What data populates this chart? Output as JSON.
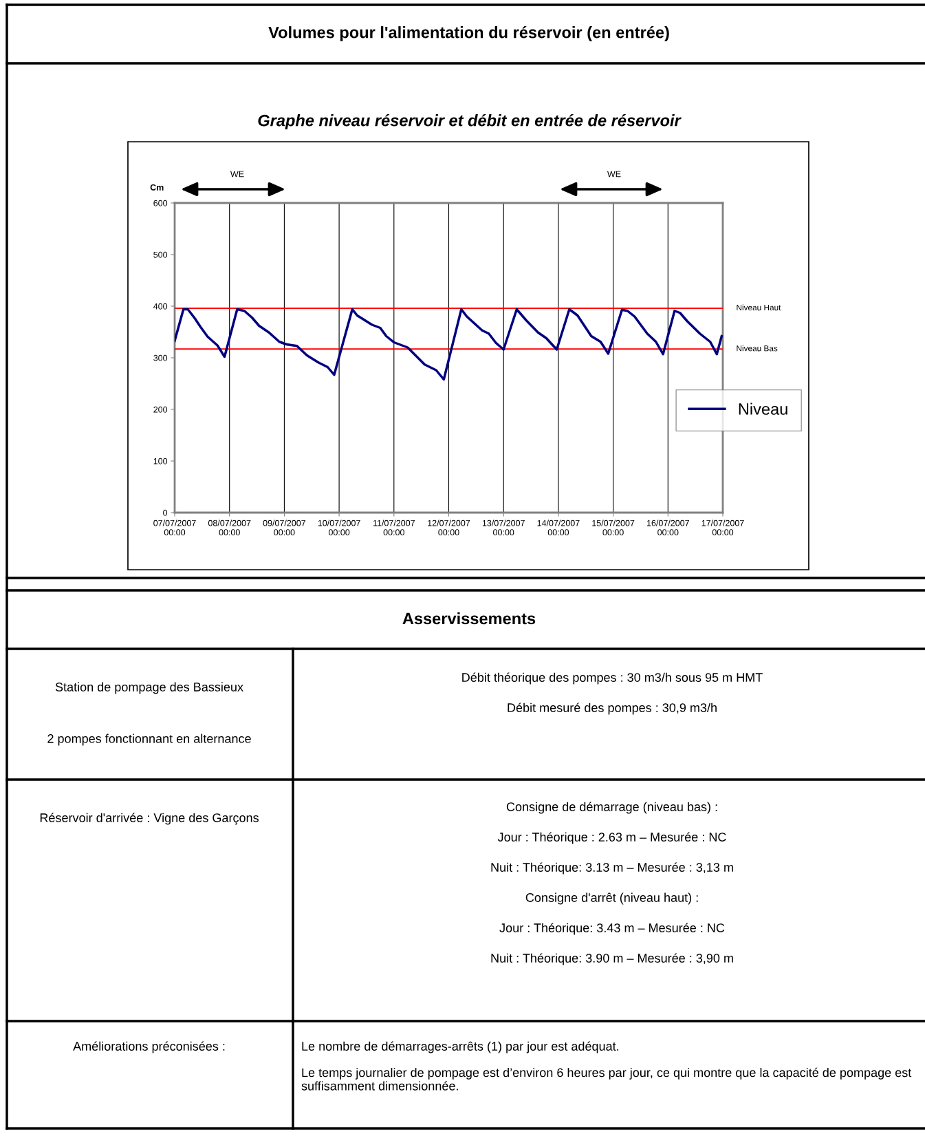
{
  "chart_data": {
    "type": "line",
    "title": "Volumes pour l'alimentation du réservoir (en entrée)",
    "subtitle": "Graphe niveau réservoir et débit en entrée de réservoir",
    "ylabel": "Cm",
    "x": [
      "2007-07-07T00:00",
      "2007-07-07T03:50",
      "2007-07-07T05:46",
      "2007-07-07T08:53",
      "2007-07-07T11:17",
      "2007-07-07T14:24",
      "2007-07-07T18:43",
      "2007-07-07T21:50",
      "2007-07-08T03:22",
      "2007-07-08T06:29",
      "2007-07-08T09:50",
      "2007-07-08T12:58",
      "2007-07-08T17:17",
      "2007-07-08T21:50",
      "2007-07-09T00:58",
      "2007-07-09T05:31",
      "2007-07-09T09:50",
      "2007-07-09T14:53",
      "2007-07-09T18:58",
      "2007-07-09T21:50",
      "2007-07-10T05:46",
      "2007-07-10T07:55",
      "2007-07-10T14:24",
      "2007-07-10T18:00",
      "2007-07-10T20:38",
      "2007-07-11T00:00",
      "2007-07-11T06:00",
      "2007-07-11T13:26",
      "2007-07-11T18:29",
      "2007-07-11T21:50",
      "2007-07-12T05:31",
      "2007-07-12T07:55",
      "2007-07-12T14:38",
      "2007-07-12T17:31",
      "2007-07-12T20:38",
      "2007-07-13T00:00",
      "2007-07-13T05:46",
      "2007-07-13T09:50",
      "2007-07-13T15:07",
      "2007-07-13T18:43",
      "2007-07-13T23:17",
      "2007-07-14T04:48",
      "2007-07-14T08:24",
      "2007-07-14T14:24",
      "2007-07-14T18:29",
      "2007-07-14T21:50",
      "2007-07-15T03:50",
      "2007-07-15T06:14",
      "2007-07-15T09:22",
      "2007-07-15T14:53",
      "2007-07-15T18:43",
      "2007-07-15T21:50",
      "2007-07-16T02:53",
      "2007-07-16T05:17",
      "2007-07-16T08:24",
      "2007-07-16T13:55",
      "2007-07-16T18:29",
      "2007-07-16T21:22",
      "2007-07-16T23:31"
    ],
    "series": [
      {
        "name": "Niveau",
        "color": "#000080",
        "values": [
          333,
          394,
          394,
          376,
          360,
          341,
          324,
          302,
          394,
          391,
          378,
          362,
          349,
          331,
          326,
          323,
          305,
          291,
          282,
          267,
          394,
          382,
          364,
          358,
          342,
          330,
          320,
          287,
          276,
          258,
          394,
          380,
          353,
          347,
          329,
          316,
          394,
          373,
          349,
          338,
          316,
          394,
          382,
          342,
          331,
          308,
          393,
          391,
          380,
          347,
          331,
          307,
          391,
          387,
          371,
          347,
          331,
          307,
          342
        ]
      }
    ],
    "xlim": [
      "2007-07-07T00:00",
      "2007-07-17T00:00"
    ],
    "xticks": [
      {
        "value": "2007-07-07",
        "label": "07/07/2007\n00:00"
      },
      {
        "value": "2007-07-08",
        "label": "08/07/2007\n00:00"
      },
      {
        "value": "2007-07-09",
        "label": "09/07/2007\n00:00"
      },
      {
        "value": "2007-07-10",
        "label": "10/07/2007\n00:00"
      },
      {
        "value": "2007-07-11",
        "label": "11/07/2007\n00:00"
      },
      {
        "value": "2007-07-12",
        "label": "12/07/2007\n00:00"
      },
      {
        "value": "2007-07-13",
        "label": "13/07/2007\n00:00"
      },
      {
        "value": "2007-07-14",
        "label": "14/07/2007\n00:00"
      },
      {
        "value": "2007-07-15",
        "label": "15/07/2007\n00:00"
      },
      {
        "value": "2007-07-16",
        "label": "16/07/2007\n00:00"
      },
      {
        "value": "2007-07-17",
        "label": "17/07/2007\n00:00"
      }
    ],
    "ylim": [
      0,
      600
    ],
    "yticks": [
      0,
      100,
      200,
      300,
      400,
      500,
      600
    ],
    "grid": "x",
    "legend": "right",
    "marker": "none",
    "line_style": "solid",
    "ref_lines": [
      {
        "axis": "y",
        "value": 396,
        "label": "Niveau Haut",
        "color": "#ff0000"
      },
      {
        "axis": "y",
        "value": 317,
        "label": "Niveau Bas",
        "color": "#ff0000"
      }
    ],
    "annotations": [
      "WE",
      "WE",
      "Asservissements",
      "Station de pompage des Bassieux",
      "2 pompes fonctionnant en alternance",
      "Débit théorique des pompes : 30 m3/h sous 95 m HMT",
      "Débit mesuré des pompes : 30,9 m3/h",
      "Réservoir d'arrivée : Vigne des Garçons",
      "Consigne de démarrage (niveau bas) :",
      "Jour : Théorique : 2.63 m – Mesurée : NC",
      "Nuit : Théorique: 3.13 m – Mesurée : 3,13 m",
      "Consigne d'arrêt (niveau haut) :",
      "Jour : Théorique: 3.43 m – Mesurée : NC",
      "Nuit : Théorique: 3.90 m – Mesurée : 3,90 m",
      "Améliorations préconisées :",
      "Le nombre de démarrages-arrêts (1) par jour est adéquat.",
      "Le temps journalier de pompage est d’environ 6 heures par jour, ce qui montre que la capacité de pompage est suffisamment dimensionnée."
    ]
  }
}
